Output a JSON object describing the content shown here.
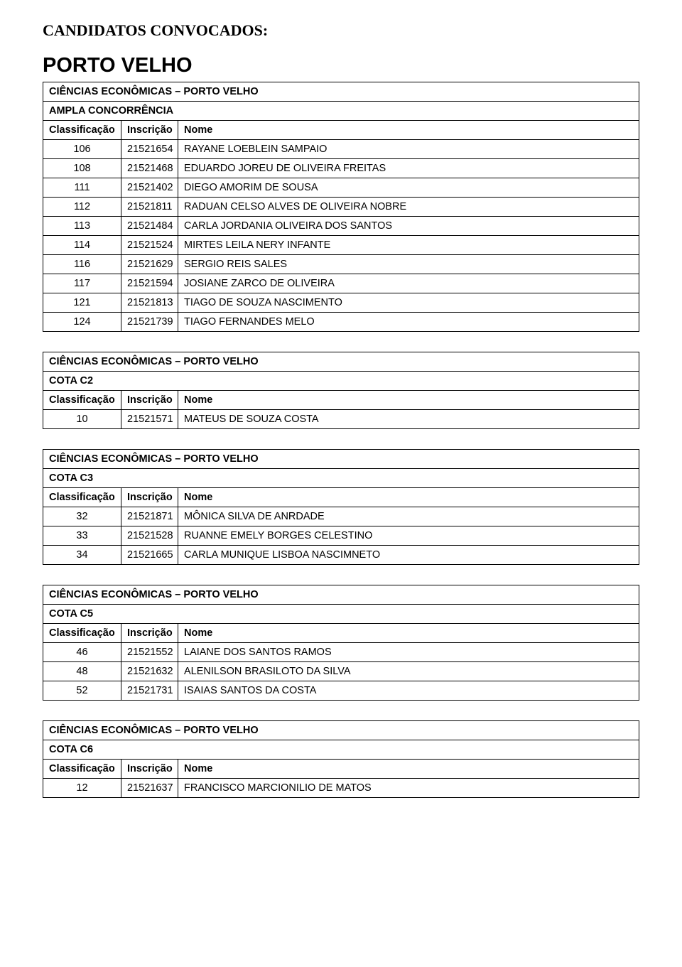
{
  "document_title": "CANDIDATOS CONVOCADOS:",
  "big_heading": "PORTO VELHO",
  "col_class_label": "Classificação",
  "col_insc_label": "Inscrição",
  "col_nome_label": "Nome",
  "sections": [
    {
      "title1": "CIÊNCIAS ECONÔMICAS – PORTO VELHO",
      "title2": "AMPLA CONCORRÊNCIA",
      "rows": [
        {
          "c": "106",
          "i": "21521654",
          "n": "RAYANE LOEBLEIN SAMPAIO"
        },
        {
          "c": "108",
          "i": "21521468",
          "n": "EDUARDO JOREU DE OLIVEIRA FREITAS"
        },
        {
          "c": "111",
          "i": "21521402",
          "n": "DIEGO AMORIM DE SOUSA"
        },
        {
          "c": "112",
          "i": "21521811",
          "n": "RADUAN CELSO ALVES DE OLIVEIRA NOBRE"
        },
        {
          "c": "113",
          "i": "21521484",
          "n": "CARLA JORDANIA OLIVEIRA DOS SANTOS"
        },
        {
          "c": "114",
          "i": "21521524",
          "n": "MIRTES LEILA NERY INFANTE"
        },
        {
          "c": "116",
          "i": "21521629",
          "n": "SERGIO REIS SALES"
        },
        {
          "c": "117",
          "i": "21521594",
          "n": "JOSIANE ZARCO DE OLIVEIRA"
        },
        {
          "c": "121",
          "i": "21521813",
          "n": "TIAGO DE SOUZA NASCIMENTO"
        },
        {
          "c": "124",
          "i": "21521739",
          "n": "TIAGO FERNANDES MELO"
        }
      ]
    },
    {
      "title1": "CIÊNCIAS ECONÔMICAS – PORTO VELHO",
      "title2": "COTA C2",
      "rows": [
        {
          "c": "10",
          "i": "21521571",
          "n": "MATEUS DE SOUZA COSTA"
        }
      ]
    },
    {
      "title1": "CIÊNCIAS ECONÔMICAS – PORTO VELHO",
      "title2": "COTA C3",
      "rows": [
        {
          "c": "32",
          "i": "21521871",
          "n": "MÔNICA SILVA DE ANRDADE"
        },
        {
          "c": "33",
          "i": "21521528",
          "n": "RUANNE EMELY BORGES CELESTINO"
        },
        {
          "c": "34",
          "i": "21521665",
          "n": "CARLA MUNIQUE LISBOA NASCIMNETO"
        }
      ]
    },
    {
      "title1": "CIÊNCIAS ECONÔMICAS – PORTO VELHO",
      "title2": "COTA C5",
      "rows": [
        {
          "c": "46",
          "i": "21521552",
          "n": "LAIANE DOS SANTOS RAMOS"
        },
        {
          "c": "48",
          "i": "21521632",
          "n": "ALENILSON BRASILOTO DA SILVA"
        },
        {
          "c": "52",
          "i": "21521731",
          "n": "ISAIAS SANTOS DA COSTA"
        }
      ]
    },
    {
      "title1": "CIÊNCIAS ECONÔMICAS – PORTO VELHO",
      "title2": "COTA C6",
      "rows": [
        {
          "c": "12",
          "i": "21521637",
          "n": "FRANCISCO MARCIONILIO DE MATOS"
        }
      ]
    }
  ]
}
